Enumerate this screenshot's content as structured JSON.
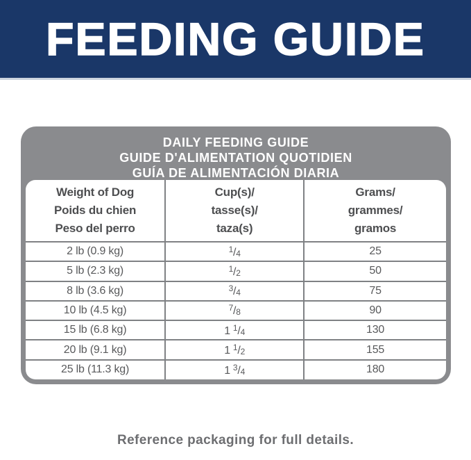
{
  "banner": {
    "title": "FEEDING GUIDE"
  },
  "guide": {
    "title_lines": [
      "DAILY FEEDING GUIDE",
      "GUIDE D'ALIMENTATION QUOTIDIEN",
      "GUÍA DE ALIMENTACIÓN DIARIA"
    ],
    "columns": [
      {
        "lines": [
          "Weight of Dog",
          "Poids du chien",
          "Peso del perro"
        ]
      },
      {
        "lines": [
          "Cup(s)/",
          "tasse(s)/",
          "taza(s)"
        ]
      },
      {
        "lines": [
          "Grams/",
          "grammes/",
          "gramos"
        ]
      }
    ],
    "slash": "/",
    "rows": [
      {
        "weight": "2 lb (0.9 kg)",
        "cups_whole": "",
        "cups_num": "1",
        "cups_den": "4",
        "grams": "25"
      },
      {
        "weight": "5 lb (2.3 kg)",
        "cups_whole": "",
        "cups_num": "1",
        "cups_den": "2",
        "grams": "50"
      },
      {
        "weight": "8 lb (3.6 kg)",
        "cups_whole": "",
        "cups_num": "3",
        "cups_den": "4",
        "grams": "75"
      },
      {
        "weight": "10 lb (4.5 kg)",
        "cups_whole": "",
        "cups_num": "7",
        "cups_den": "8",
        "grams": "90"
      },
      {
        "weight": "15 lb (6.8 kg)",
        "cups_whole": "1",
        "cups_num": "1",
        "cups_den": "4",
        "grams": "130"
      },
      {
        "weight": "20 lb (9.1 kg)",
        "cups_whole": "1",
        "cups_num": "1",
        "cups_den": "2",
        "grams": "155"
      },
      {
        "weight": "25 lb (11.3 kg)",
        "cups_whole": "1",
        "cups_num": "3",
        "cups_den": "4",
        "grams": "180"
      }
    ]
  },
  "footer": {
    "note": "Reference packaging for full details."
  },
  "colors": {
    "banner_blue": "#1a3768",
    "card_gray": "#8a8b8e",
    "line_gray": "#7f8184",
    "text_dark": "#4d4e50",
    "text_data": "#58595b",
    "note_gray": "#6d6e71"
  }
}
